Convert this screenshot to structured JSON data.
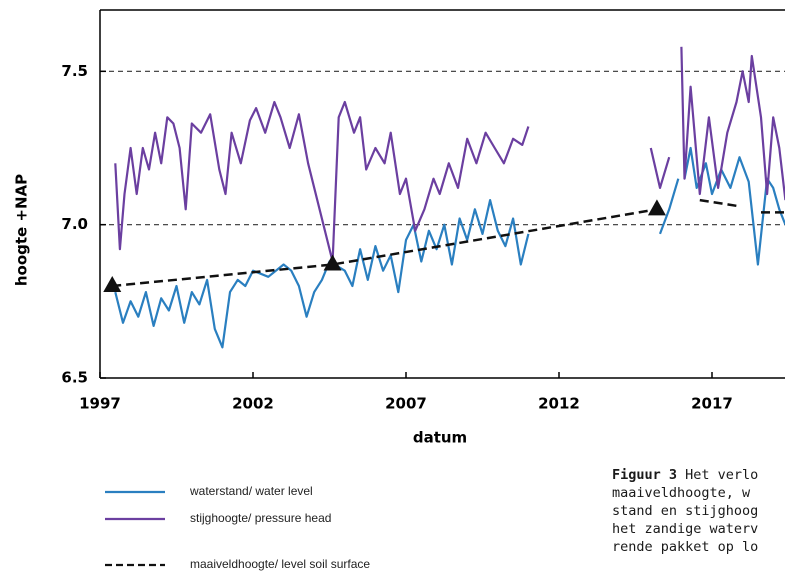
{
  "chart_data": {
    "type": "line",
    "xlabel": "datum",
    "ylabel": "hoogte +NAP",
    "xlim": [
      1997,
      2019.4
    ],
    "xticks": [
      1997,
      2002,
      2007,
      2012,
      2017
    ],
    "ylim": [
      6.5,
      7.7
    ],
    "yticks": [
      {
        "value": 6.5,
        "label": "6.5"
      },
      {
        "value": 7,
        "label": "7.0"
      },
      {
        "value": 7.5,
        "label": "7.5"
      }
    ],
    "grid": true,
    "series": [
      {
        "name": "waterstand/ water level",
        "color": "#2a7fc0",
        "style": "solid",
        "x": [
          1997.5,
          1997.75,
          1998,
          1998.25,
          1998.5,
          1998.75,
          1999,
          1999.25,
          1999.5,
          1999.75,
          2000,
          2000.25,
          2000.5,
          2000.75,
          2001,
          2001.25,
          2001.5,
          2001.75,
          2002,
          2002.5,
          2003,
          2003.25,
          2003.5,
          2003.75,
          2004,
          2004.25,
          2004.5,
          2005,
          2005.25,
          2005.5,
          2005.75,
          2006,
          2006.25,
          2006.5,
          2006.75,
          2007,
          2007.25,
          2007.5,
          2007.75,
          2008,
          2008.25,
          2008.5,
          2008.75,
          2009,
          2009.25,
          2009.5,
          2009.75,
          2010,
          2010.25,
          2010.5,
          2010.75,
          2011,
          null,
          2015.3,
          2015.6,
          2015.9,
          null,
          2016.1,
          2016.3,
          2016.5,
          2016.8,
          2017,
          2017.3,
          2017.6,
          2017.9,
          2018.2,
          2018.5,
          2018.8,
          2019,
          2019.2,
          2019.4
        ],
        "values": [
          6.78,
          6.68,
          6.75,
          6.7,
          6.78,
          6.67,
          6.76,
          6.72,
          6.8,
          6.68,
          6.78,
          6.74,
          6.82,
          6.66,
          6.6,
          6.78,
          6.82,
          6.8,
          6.85,
          6.83,
          6.87,
          6.85,
          6.8,
          6.7,
          6.78,
          6.82,
          6.88,
          6.85,
          6.8,
          6.92,
          6.82,
          6.93,
          6.85,
          6.9,
          6.78,
          6.95,
          7,
          6.88,
          6.98,
          6.92,
          7,
          6.87,
          7.02,
          6.95,
          7.05,
          6.97,
          7.08,
          6.98,
          6.93,
          7.02,
          6.87,
          6.97,
          null,
          6.97,
          7.05,
          7.15,
          null,
          7.15,
          7.25,
          7.12,
          7.2,
          7.1,
          7.18,
          7.12,
          7.22,
          7.14,
          6.87,
          7.15,
          7.12,
          7.05,
          7
        ]
      },
      {
        "name": "stijghoogte/ pressure head",
        "color": "#6b3fa0",
        "style": "solid",
        "x": [
          1997.5,
          1997.65,
          1997.8,
          1998,
          1998.2,
          1998.4,
          1998.6,
          1998.8,
          1999,
          1999.2,
          1999.4,
          1999.6,
          1999.8,
          2000,
          2000.3,
          2000.6,
          2000.9,
          2001.1,
          2001.3,
          2001.6,
          2001.9,
          2002.1,
          2002.4,
          2002.7,
          2002.9,
          2003.2,
          2003.5,
          2003.8,
          2004.6,
          2004.8,
          2005,
          2005.3,
          2005.5,
          2005.7,
          2006,
          2006.3,
          2006.5,
          2006.8,
          2007,
          2007.3,
          2007.6,
          2007.9,
          2008.1,
          2008.4,
          2008.7,
          2009,
          2009.3,
          2009.6,
          2009.9,
          2010.2,
          2010.5,
          2010.8,
          2011,
          null,
          2015,
          2015.3,
          2015.6,
          null,
          2016,
          2016.1,
          2016.3,
          2016.6,
          2016.9,
          2017.2,
          2017.5,
          2017.8,
          2018,
          2018.2,
          2018.3,
          2018.6,
          2018.8,
          2019,
          2019.2,
          2019.4
        ],
        "values": [
          7.2,
          6.92,
          7.1,
          7.25,
          7.1,
          7.25,
          7.18,
          7.3,
          7.2,
          7.35,
          7.33,
          7.25,
          7.05,
          7.33,
          7.3,
          7.36,
          7.18,
          7.1,
          7.3,
          7.2,
          7.34,
          7.38,
          7.3,
          7.4,
          7.35,
          7.25,
          7.36,
          7.2,
          6.88,
          7.35,
          7.4,
          7.3,
          7.35,
          7.18,
          7.25,
          7.2,
          7.3,
          7.1,
          7.15,
          6.98,
          7.05,
          7.15,
          7.1,
          7.2,
          7.12,
          7.28,
          7.2,
          7.3,
          7.25,
          7.2,
          7.28,
          7.26,
          7.32,
          null,
          7.25,
          7.12,
          7.22,
          null,
          7.58,
          7.15,
          7.45,
          7.1,
          7.35,
          7.12,
          7.3,
          7.4,
          7.5,
          7.4,
          7.55,
          7.35,
          7.1,
          7.35,
          7.25,
          7.08
        ]
      },
      {
        "name": "maaiveldhoogte/ level soil surface",
        "color": "#111111",
        "style": "dashed",
        "x": [
          1997.4,
          2004.6,
          2015.2,
          null,
          2016.6,
          2017.9,
          null,
          2018.6,
          2019.4
        ],
        "values": [
          6.8,
          6.87,
          7.05,
          null,
          7.08,
          7.06,
          null,
          7.04,
          7.04
        ]
      },
      {
        "color": "#111111",
        "style": "triangle",
        "x": [
          1997.4,
          2004.6,
          2015.2
        ],
        "values": [
          6.8,
          6.87,
          7.05
        ]
      }
    ]
  },
  "caption": {
    "label": "Figuur 3",
    "lines": [
      " Het verlo",
      "maaiveldhoogte, w",
      "stand en stijghoog",
      "het zandige waterv",
      "rende pakket op lo"
    ]
  }
}
